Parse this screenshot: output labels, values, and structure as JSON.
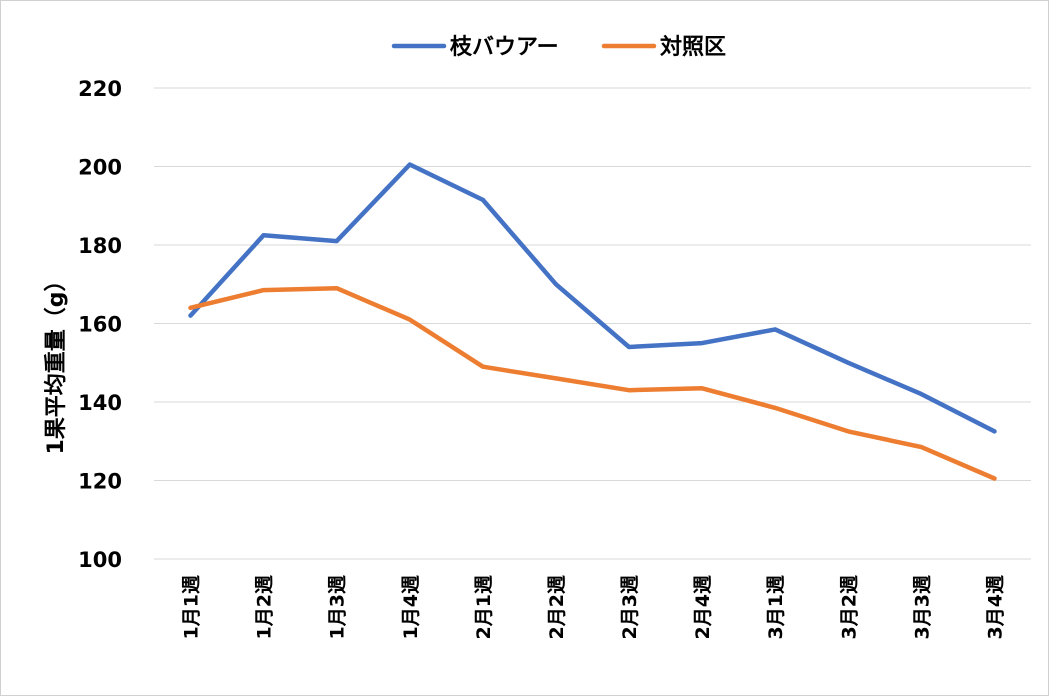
{
  "chart_data": {
    "type": "line",
    "title": "",
    "xlabel": "",
    "ylabel": "1果平均重量（g）",
    "categories": [
      "1月1週",
      "1月2週",
      "1月3週",
      "1月4週",
      "2月1週",
      "2月2週",
      "2月3週",
      "2月4週",
      "3月1週",
      "3月2週",
      "3月3週",
      "3月4週"
    ],
    "ylim": [
      100,
      220
    ],
    "yticks": [
      100,
      120,
      140,
      160,
      180,
      200,
      220
    ],
    "grid": true,
    "legend_position": "top",
    "series": [
      {
        "name": "枝バウアー",
        "color": "#4472C4",
        "values": [
          162,
          182.5,
          181,
          200.5,
          191.5,
          170,
          154,
          155,
          158.5,
          150,
          142,
          132.5
        ]
      },
      {
        "name": "対照区",
        "color": "#ED7D31",
        "values": [
          164,
          168.5,
          169,
          161,
          149,
          146,
          143,
          143.5,
          138.5,
          132.5,
          128.5,
          120.5
        ]
      }
    ]
  }
}
